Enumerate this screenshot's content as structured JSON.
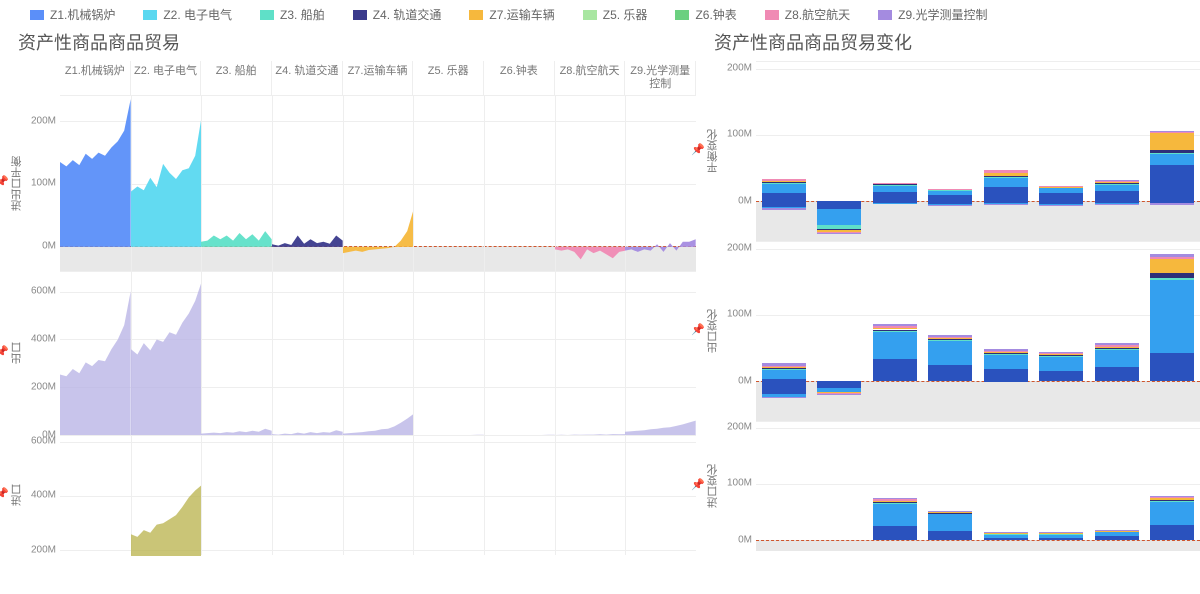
{
  "legend": {
    "items": [
      {
        "label": "Z1.机械锅炉",
        "color": "#5b8ff9"
      },
      {
        "label": "Z2. 电子电气",
        "color": "#5ad8f0"
      },
      {
        "label": "Z3. 船舶",
        "color": "#5fe0c8"
      },
      {
        "label": "Z4. 轨道交通",
        "color": "#3a3a8c"
      },
      {
        "label": "Z7.运输车辆",
        "color": "#f6b83d"
      },
      {
        "label": "Z5. 乐器",
        "color": "#a8e6a1"
      },
      {
        "label": "Z6.钟表",
        "color": "#6bd080"
      },
      {
        "label": "Z8.航空航天",
        "color": "#f08ab4"
      },
      {
        "label": "Z9.光学测量控制",
        "color": "#a48be0"
      }
    ]
  },
  "left_panel": {
    "title": "资产性商品商品贸易",
    "facets": [
      "Z1.机械锅炉",
      "Z2. 电子电气",
      "Z3. 船舶",
      "Z4. 轨道交通",
      "Z7.运输车辆",
      "Z5. 乐器",
      "Z6.钟表",
      "Z8.航空航天",
      "Z9.光学测量控制"
    ],
    "rows": [
      {
        "ylabel": "进出口平衡",
        "pin": true,
        "height": 176,
        "ymin": -40,
        "ymax": 240,
        "ticks": [
          0,
          100,
          200
        ],
        "tick_labels": [
          "0M",
          "100M",
          "200M"
        ],
        "type": "area_filled",
        "series": [
          {
            "color": "#5b8ff9",
            "values": [
              135,
              128,
              138,
              130,
              148,
              140,
              150,
              145,
              158,
              168,
              185,
              235
            ]
          },
          {
            "color": "#5ad8f0",
            "values": [
              88,
              96,
              90,
              110,
              95,
              132,
              118,
              108,
              122,
              125,
              145,
              208
            ]
          },
          {
            "color": "#5fe0c8",
            "values": [
              8,
              10,
              18,
              12,
              18,
              10,
              22,
              12,
              20,
              10,
              25,
              12
            ]
          },
          {
            "color": "#3a3a8c",
            "values": [
              4,
              2,
              6,
              3,
              18,
              5,
              12,
              6,
              8,
              5,
              18,
              10
            ]
          },
          {
            "color": "#f6b83d",
            "values": [
              -10,
              -8,
              -6,
              -8,
              -5,
              -4,
              -3,
              -2,
              0,
              10,
              25,
              60
            ]
          },
          {
            "color": "#a8e6a1",
            "values": [
              0,
              0,
              0,
              0,
              0,
              0,
              0,
              0,
              0,
              0,
              0,
              0
            ]
          },
          {
            "color": "#6bd080",
            "values": [
              0,
              0,
              0,
              0,
              0,
              0,
              0,
              0,
              0,
              0,
              0,
              0
            ]
          },
          {
            "color": "#f08ab4",
            "values": [
              -4,
              -6,
              -4,
              -8,
              -20,
              -4,
              -10,
              -6,
              -12,
              -18,
              -8,
              -6
            ]
          },
          {
            "color": "#a48be0",
            "values": [
              -6,
              -4,
              -8,
              -4,
              -6,
              4,
              -8,
              6,
              -6,
              8,
              8,
              12
            ]
          }
        ]
      },
      {
        "ylabel": "出口",
        "pin": true,
        "height": 164,
        "ymin": 0,
        "ymax": 680,
        "ticks": [
          0,
          200,
          400,
          600
        ],
        "tick_labels": [
          "0M",
          "200M",
          "400M",
          "600M"
        ],
        "type": "area",
        "fill": "#b6b0e4",
        "series": [
          {
            "values": [
              255,
              248,
              278,
              260,
              305,
              290,
              315,
              310,
              360,
              400,
              460,
              600
            ]
          },
          {
            "values": [
              360,
              338,
              385,
              355,
              400,
              390,
              430,
              420,
              470,
              508,
              560,
              640
            ]
          },
          {
            "values": [
              10,
              12,
              14,
              12,
              16,
              14,
              20,
              16,
              22,
              18,
              30,
              22
            ]
          },
          {
            "values": [
              8,
              6,
              10,
              8,
              14,
              10,
              16,
              12,
              16,
              14,
              24,
              18
            ]
          },
          {
            "values": [
              10,
              12,
              14,
              16,
              20,
              22,
              28,
              30,
              40,
              55,
              72,
              92
            ]
          },
          {
            "values": [
              2,
              2,
              3,
              2,
              3,
              3,
              4,
              3,
              4,
              4,
              5,
              5
            ]
          },
          {
            "values": [
              2,
              2,
              3,
              2,
              3,
              3,
              4,
              3,
              4,
              4,
              5,
              5
            ]
          },
          {
            "values": [
              4,
              5,
              4,
              6,
              5,
              6,
              6,
              7,
              6,
              8,
              7,
              8
            ]
          },
          {
            "values": [
              18,
              20,
              22,
              24,
              28,
              30,
              34,
              36,
              42,
              48,
              56,
              64
            ]
          }
        ]
      },
      {
        "ylabel": "进口",
        "pin": true,
        "height": 120,
        "ymin": 180,
        "ymax": 620,
        "ticks": [
          200,
          400,
          600
        ],
        "tick_labels": [
          "200M",
          "400M",
          "600M"
        ],
        "type": "area",
        "fill": "#b8b24a",
        "series": [
          {
            "values": []
          },
          {
            "values": [
              260,
              250,
              275,
              265,
              295,
              300,
              315,
              330,
              360,
              395,
              420,
              440
            ]
          },
          {
            "values": []
          },
          {
            "values": []
          },
          {
            "values": []
          },
          {
            "values": []
          },
          {
            "values": []
          },
          {
            "values": []
          },
          {
            "values": []
          }
        ]
      }
    ]
  },
  "right_panel": {
    "title": "资产性商品商品贸易变化",
    "rows": [
      {
        "ylabel": "平衡变化",
        "pin": true,
        "height": 180,
        "ymin": -60,
        "ymax": 210,
        "ticks": [
          0,
          100,
          200
        ],
        "tick_labels": [
          "0M",
          "100M",
          "200M"
        ],
        "groups": [
          {
            "pos": [
              12,
              14,
              2,
              1,
              2,
              0,
              0,
              3,
              0
            ],
            "neg": [
              8,
              2,
              0,
              0,
              0,
              0,
              0,
              0,
              4
            ]
          },
          {
            "pos": [
              0,
              0,
              0,
              0,
              0,
              0,
              0,
              0,
              0
            ],
            "neg": [
              12,
              24,
              6,
              2,
              2,
              0,
              0,
              2,
              2
            ]
          },
          {
            "pos": [
              14,
              10,
              1,
              1,
              1,
              0,
              0,
              1,
              0
            ],
            "neg": [
              2,
              1,
              0,
              0,
              0,
              0,
              0,
              0,
              0
            ]
          },
          {
            "pos": [
              10,
              6,
              1,
              0,
              0,
              0,
              0,
              1,
              0
            ],
            "neg": [
              4,
              2,
              0,
              0,
              0,
              0,
              0,
              0,
              1
            ]
          },
          {
            "pos": [
              22,
              14,
              1,
              1,
              5,
              0,
              0,
              4,
              0
            ],
            "neg": [
              3,
              1,
              0,
              0,
              0,
              0,
              0,
              0,
              1
            ]
          },
          {
            "pos": [
              12,
              8,
              1,
              0,
              1,
              0,
              0,
              1,
              0
            ],
            "neg": [
              4,
              2,
              0,
              0,
              0,
              0,
              0,
              0,
              1
            ]
          },
          {
            "pos": [
              15,
              10,
              1,
              1,
              2,
              0,
              0,
              2,
              1
            ],
            "neg": [
              3,
              1,
              0,
              0,
              0,
              0,
              0,
              0,
              2
            ]
          },
          {
            "pos": [
              55,
              16,
              2,
              4,
              26,
              0,
              0,
              2,
              1
            ],
            "neg": [
              2,
              0,
              0,
              0,
              0,
              0,
              0,
              0,
              4
            ]
          }
        ]
      },
      {
        "ylabel": "出口变化",
        "pin": true,
        "height": 180,
        "ymin": -60,
        "ymax": 210,
        "ticks": [
          0,
          100,
          200
        ],
        "tick_labels": [
          "0M",
          "100M",
          "200M"
        ],
        "groups": [
          {
            "pos": [
              4,
              14,
              1,
              1,
              1,
              0,
              0,
              2,
              4
            ],
            "neg": [
              20,
              4,
              0,
              0,
              0,
              0,
              0,
              0,
              2
            ]
          },
          {
            "pos": [
              0,
              0,
              0,
              0,
              0,
              0,
              0,
              0,
              0
            ],
            "neg": [
              10,
              6,
              1,
              0,
              1,
              0,
              0,
              1,
              1
            ]
          },
          {
            "pos": [
              34,
              40,
              2,
              2,
              2,
              0,
              0,
              3,
              4
            ],
            "neg": [
              0,
              0,
              0,
              0,
              0,
              0,
              0,
              0,
              0
            ]
          },
          {
            "pos": [
              24,
              36,
              2,
              1,
              2,
              0,
              0,
              2,
              3
            ],
            "neg": [
              0,
              0,
              0,
              0,
              0,
              0,
              0,
              0,
              0
            ]
          },
          {
            "pos": [
              18,
              22,
              1,
              1,
              2,
              0,
              0,
              2,
              3
            ],
            "neg": [
              1,
              0,
              0,
              0,
              0,
              0,
              0,
              0,
              0
            ]
          },
          {
            "pos": [
              15,
              22,
              1,
              1,
              2,
              0,
              0,
              1,
              2
            ],
            "neg": [
              0,
              0,
              0,
              0,
              0,
              0,
              0,
              0,
              0
            ]
          },
          {
            "pos": [
              22,
              26,
              1,
              1,
              2,
              0,
              0,
              2,
              3
            ],
            "neg": [
              0,
              0,
              0,
              0,
              0,
              0,
              0,
              0,
              0
            ]
          },
          {
            "pos": [
              42,
              110,
              3,
              8,
              22,
              0,
              0,
              2,
              5
            ],
            "neg": [
              0,
              0,
              0,
              0,
              0,
              0,
              0,
              0,
              0
            ]
          }
        ]
      },
      {
        "ylabel": "进口变化",
        "pin": true,
        "height": 130,
        "ymin": -20,
        "ymax": 210,
        "ticks": [
          0,
          100,
          200
        ],
        "tick_labels": [
          "0M",
          "100M",
          "200M"
        ],
        "groups": [
          {
            "pos": [
              0,
              0,
              0,
              0,
              0,
              0,
              0,
              0,
              0
            ],
            "neg": [
              0,
              0,
              0,
              0,
              0,
              0,
              0,
              0,
              0
            ]
          },
          {
            "pos": [
              0,
              0,
              0,
              0,
              0,
              0,
              0,
              0,
              0
            ],
            "neg": [
              0,
              0,
              0,
              0,
              0,
              0,
              0,
              0,
              0
            ]
          },
          {
            "pos": [
              24,
              40,
              2,
              1,
              3,
              0,
              0,
              2,
              2
            ],
            "neg": [
              0,
              0,
              0,
              0,
              0,
              0,
              0,
              0,
              0
            ]
          },
          {
            "pos": [
              16,
              30,
              1,
              1,
              2,
              0,
              0,
              1,
              1
            ],
            "neg": [
              0,
              0,
              0,
              0,
              0,
              0,
              0,
              0,
              0
            ]
          },
          {
            "pos": [
              4,
              6,
              1,
              0,
              1,
              0,
              0,
              0,
              1
            ],
            "neg": [
              0,
              0,
              0,
              0,
              0,
              0,
              0,
              0,
              0
            ]
          },
          {
            "pos": [
              4,
              6,
              1,
              0,
              1,
              0,
              0,
              0,
              1
            ],
            "neg": [
              0,
              0,
              0,
              0,
              0,
              0,
              0,
              0,
              0
            ]
          },
          {
            "pos": [
              6,
              8,
              1,
              0,
              1,
              0,
              0,
              1,
              1
            ],
            "neg": [
              0,
              0,
              0,
              0,
              0,
              0,
              0,
              0,
              0
            ]
          },
          {
            "pos": [
              26,
              42,
              2,
              1,
              3,
              0,
              0,
              2,
              2
            ],
            "neg": [
              0,
              0,
              0,
              0,
              0,
              0,
              0,
              0,
              0
            ]
          }
        ]
      }
    ]
  },
  "series_colors": [
    "#2a52be",
    "#34a0ef",
    "#5fe0c8",
    "#2e2e78",
    "#f6b83d",
    "#a8e6a1",
    "#6bd080",
    "#f08ab4",
    "#a48be0"
  ]
}
